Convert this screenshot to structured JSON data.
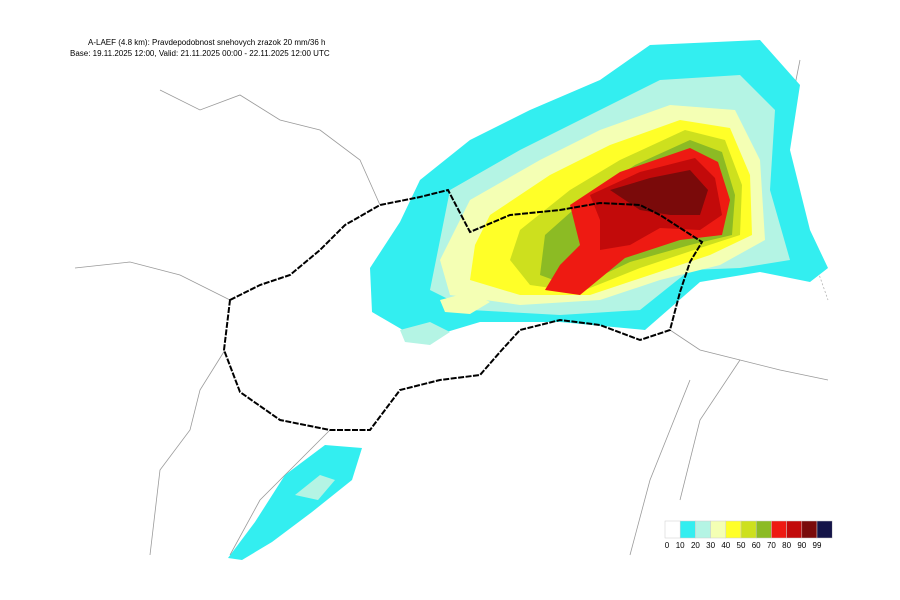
{
  "header": {
    "line1": "A-LAEF (4.8 km): Pravdepodobnost snehovych zrazok 20 mm/36 h",
    "line2": "Base: 19.11.2025 12:00, Valid: 21.11.2025 00:00 - 22.11.2025 12:00 UTC"
  },
  "legend": {
    "labels": [
      0,
      10,
      20,
      30,
      40,
      50,
      60,
      70,
      80,
      90,
      99
    ],
    "colors": [
      "#ffffff",
      "#33eef0",
      "#b4f4e4",
      "#f4ffb4",
      "#ffff28",
      "#cde01e",
      "#8cbb24",
      "#ee1a12",
      "#c20a0a",
      "#7a0a0a",
      "#141448"
    ]
  }
}
